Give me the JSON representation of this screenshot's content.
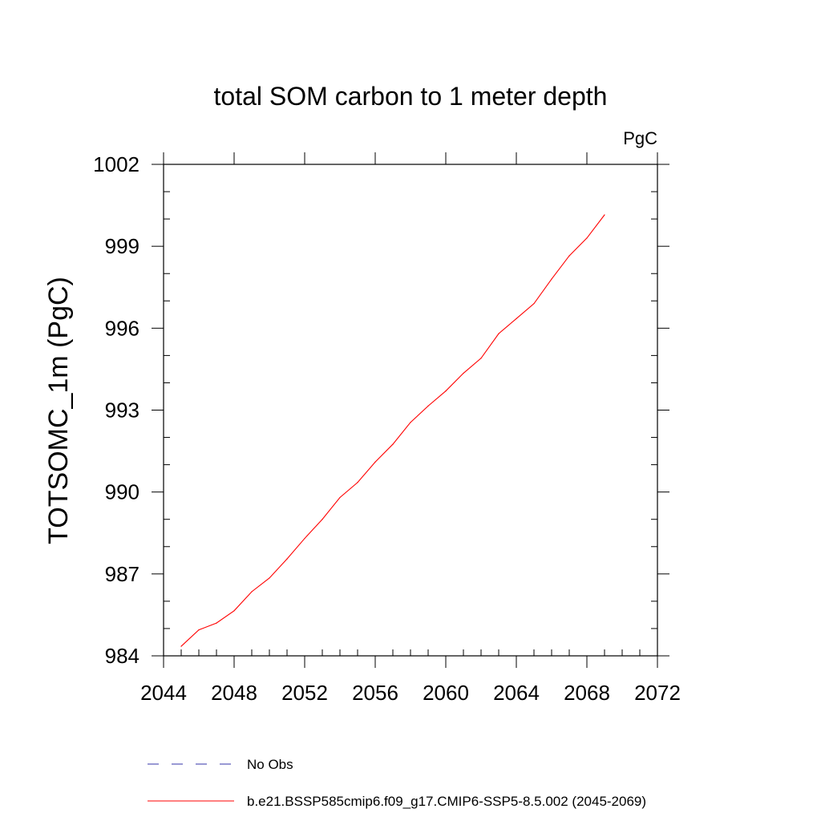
{
  "chart_data": {
    "type": "line",
    "title": "total SOM carbon to 1 meter depth",
    "units": "PgC",
    "xlabel": "",
    "ylabel": "TOTSOMC_1m  (PgC)",
    "xlim": [
      2044,
      2072
    ],
    "ylim": [
      984,
      1002
    ],
    "x_ticks": [
      2044,
      2048,
      2052,
      2056,
      2060,
      2064,
      2068,
      2072
    ],
    "y_ticks": [
      984,
      987,
      990,
      993,
      996,
      999,
      1002
    ],
    "series": [
      {
        "name": "b.e21.BSSP585cmip6.f09_g17.CMIP6-SSP5-8.5.002 (2045-2069)",
        "color": "#ff0000",
        "x": [
          2045,
          2046,
          2047,
          2048,
          2049,
          2050,
          2051,
          2052,
          2053,
          2054,
          2055,
          2056,
          2057,
          2058,
          2059,
          2060,
          2061,
          2062,
          2063,
          2064,
          2065,
          2066,
          2067,
          2068,
          2069
        ],
        "values": [
          984.35,
          984.95,
          985.2,
          985.65,
          986.35,
          986.85,
          987.55,
          988.3,
          989.0,
          989.8,
          990.35,
          991.1,
          991.75,
          992.55,
          993.15,
          993.7,
          994.35,
          994.9,
          995.8,
          996.35,
          996.9,
          997.8,
          998.65,
          999.3,
          1000.15
        ]
      }
    ],
    "legend": [
      {
        "label": "No Obs",
        "style": "dashed",
        "color": "#3333aa"
      },
      {
        "label": "b.e21.BSSP585cmip6.f09_g17.CMIP6-SSP5-8.5.002 (2045-2069)",
        "style": "solid",
        "color": "#ff0000"
      }
    ]
  }
}
